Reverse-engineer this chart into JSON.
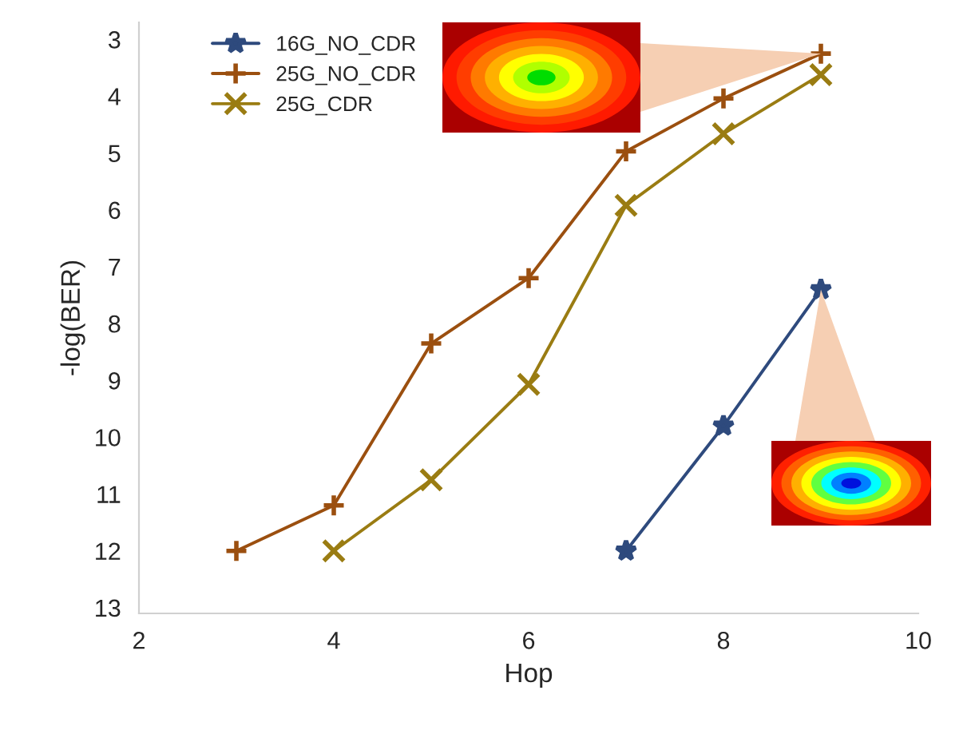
{
  "chart_data": {
    "type": "line",
    "xlabel": "Hop",
    "ylabel": "-log(BER)",
    "xlim": [
      2,
      10
    ],
    "xticks": [
      2,
      4,
      6,
      8,
      10
    ],
    "ylim": [
      13.1,
      2.7
    ],
    "yticks": [
      3,
      4,
      5,
      6,
      7,
      8,
      9,
      10,
      11,
      12,
      13
    ],
    "grid": false,
    "legend": "top left",
    "series": [
      {
        "name": "16G_NO_CDR",
        "color": "#2e4a7d",
        "marker": "star",
        "x": [
          7,
          8,
          9
        ],
        "values": [
          12.0,
          9.8,
          7.4
        ]
      },
      {
        "name": "25G_NO_CDR",
        "color": "#9b4f0f",
        "marker": "cross",
        "x": [
          3,
          4,
          5,
          6,
          7,
          8,
          9
        ],
        "values": [
          12.0,
          11.2,
          8.35,
          7.2,
          4.97,
          4.04,
          3.25
        ]
      },
      {
        "name": "25G_CDR",
        "color": "#9a7c12",
        "marker": "x",
        "x": [
          4,
          5,
          6,
          7,
          8,
          9
        ],
        "values": [
          12.0,
          10.75,
          9.07,
          5.92,
          4.66,
          3.62
        ]
      }
    ]
  }
}
